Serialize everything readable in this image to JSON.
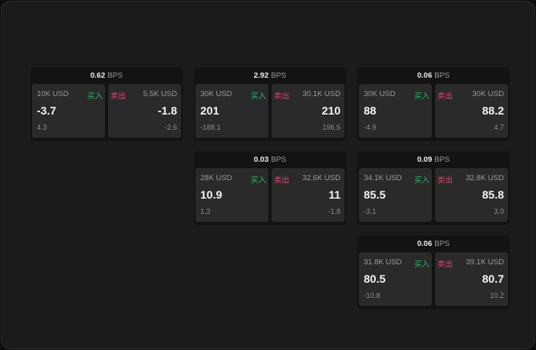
{
  "unit": "BPS",
  "buy_label": "买入",
  "sell_label": "卖出",
  "colors": {
    "buy": "#2fb56a",
    "sell": "#e0456f"
  },
  "cards": [
    {
      "spread": "0.62",
      "buy": {
        "size": "10K USD",
        "price": "-3.7",
        "change": "4.3"
      },
      "sell": {
        "size": "5.5K USD",
        "price": "-1.8",
        "change": "-2.6"
      }
    },
    {
      "spread": "2.92",
      "buy": {
        "size": "30K USD",
        "price": "201",
        "change": "-188.1"
      },
      "sell": {
        "size": "30.1K USD",
        "price": "210",
        "change": "196.5"
      }
    },
    {
      "spread": "0.06",
      "buy": {
        "size": "30K USD",
        "price": "88",
        "change": "-4.9"
      },
      "sell": {
        "size": "30K USD",
        "price": "88.2",
        "change": "4.7"
      }
    },
    {
      "spread": "0.03",
      "buy": {
        "size": "28K USD",
        "price": "10.9",
        "change": "1.3"
      },
      "sell": {
        "size": "32.6K USD",
        "price": "11",
        "change": "-1.8"
      }
    },
    {
      "spread": "0.09",
      "buy": {
        "size": "34.1K USD",
        "price": "85.5",
        "change": "-3.1"
      },
      "sell": {
        "size": "32.8K USD",
        "price": "85.8",
        "change": "3.0"
      }
    },
    {
      "spread": "0.06",
      "buy": {
        "size": "31.8K USD",
        "price": "80.5",
        "change": "-10.8"
      },
      "sell": {
        "size": "39.1K USD",
        "price": "80.7",
        "change": "10.2"
      }
    }
  ]
}
